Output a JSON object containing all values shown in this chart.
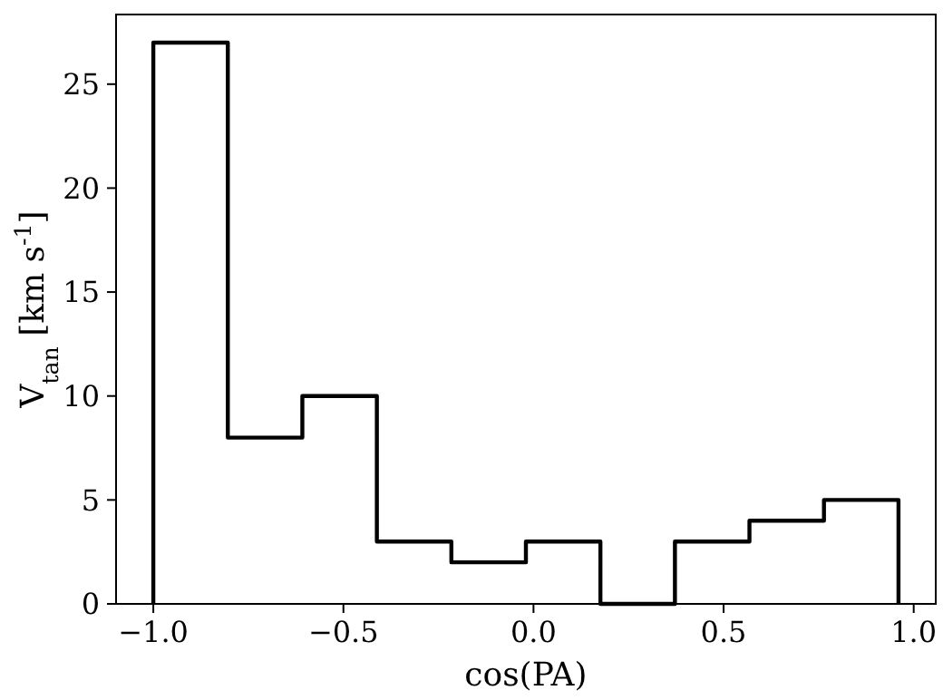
{
  "chart_data": {
    "type": "histogram",
    "xlabel": "cos(PA)",
    "ylabel": "V$_{tan}$ [km s$^{-1}$]",
    "bins": [
      -1,
      -0.804,
      -0.608,
      -0.412,
      -0.216,
      -0.02,
      0.176,
      0.372,
      0.568,
      0.764,
      0.96
    ],
    "values": [
      27,
      8,
      10,
      3,
      2,
      3,
      0,
      3,
      4,
      5
    ],
    "color": "#000000",
    "line_style": "solid",
    "xlim": [
      -1.098,
      1.058
    ],
    "xticks": [
      {
        "value": -1,
        "label": "−1.0"
      },
      {
        "value": -0.5,
        "label": "−0.5"
      },
      {
        "value": 0,
        "label": "0.0"
      },
      {
        "value": 0.5,
        "label": "0.5"
      },
      {
        "value": 1,
        "label": "1.0"
      }
    ],
    "ylim": [
      0,
      28.35
    ],
    "yticks": [
      0,
      5,
      10,
      15,
      20,
      25
    ],
    "grid": false
  }
}
